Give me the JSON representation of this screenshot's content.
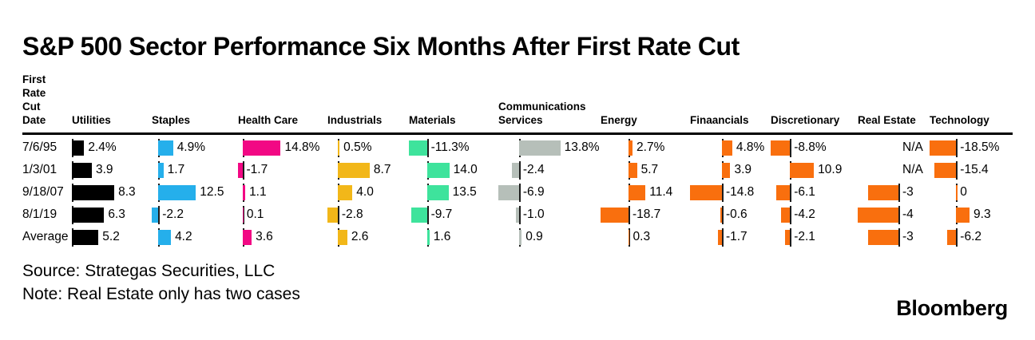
{
  "title": "S&P 500 Sector Performance Six Months After First Rate Cut",
  "source": "Source: Strategas Securities, LLC",
  "note": "Note: Real Estate only has two cases",
  "logo": "Bloomberg",
  "chart_data": {
    "type": "bar",
    "orientation": "horizontal",
    "layout_hint": "table of per-column mini bar charts, each column has its own zero axis and per-column normalized bar scale",
    "date_column_header_lines": [
      "First",
      "Rate",
      "Cut",
      "Date"
    ],
    "columns": [
      {
        "key": "utilities",
        "label": "Utilities",
        "color": "#000000"
      },
      {
        "key": "staples",
        "label": "Staples",
        "color": "#25AFEB"
      },
      {
        "key": "health-care",
        "label": "Health Care",
        "color": "#F20884"
      },
      {
        "key": "industrials",
        "label": "Industrials",
        "color": "#F2B719"
      },
      {
        "key": "materials",
        "label": "Materials",
        "color": "#3EE39C"
      },
      {
        "key": "communications-services",
        "label": "Communications Services",
        "color": "#B6BFB9"
      },
      {
        "key": "energy",
        "label": "Energy",
        "color": "#F96F0E"
      },
      {
        "key": "financials",
        "label": "Finaancials",
        "color": "#F96F0E"
      },
      {
        "key": "discretionary",
        "label": "Discretionary",
        "color": "#F96F0E"
      },
      {
        "key": "real-estate",
        "label": "Real Estate",
        "color": "#F96F0E"
      },
      {
        "key": "technology",
        "label": "Technology",
        "color": "#F96F0E"
      }
    ],
    "rows": [
      {
        "date": "7/6/95",
        "values": [
          2.4,
          4.9,
          14.8,
          0.5,
          -11.3,
          13.8,
          2.7,
          4.8,
          -8.8,
          null,
          -18.5
        ],
        "labels": [
          "2.4%",
          "4.9%",
          "14.8%",
          "0.5%",
          "-11.3%",
          "13.8%",
          "2.7%",
          "4.8%",
          "-8.8%",
          "N/A",
          "-18.5%"
        ]
      },
      {
        "date": "1/3/01",
        "values": [
          3.9,
          1.7,
          -1.7,
          8.7,
          14.0,
          -2.4,
          5.7,
          3.9,
          10.9,
          null,
          -15.4
        ],
        "labels": [
          "3.9",
          "1.7",
          "-1.7",
          "8.7",
          "14.0",
          "-2.4",
          "5.7",
          "3.9",
          "10.9",
          "N/A",
          "-15.4"
        ]
      },
      {
        "date": "9/18/07",
        "values": [
          8.3,
          12.5,
          1.1,
          4.0,
          13.5,
          -6.9,
          11.4,
          -14.8,
          -6.1,
          -3,
          0
        ],
        "labels": [
          "8.3",
          "12.5",
          "1.1",
          "4.0",
          "13.5",
          "-6.9",
          "11.4",
          "-14.8",
          "-6.1",
          "-3",
          "0"
        ]
      },
      {
        "date": "8/1/19",
        "values": [
          6.3,
          -2.2,
          0.1,
          -2.8,
          -9.7,
          -1.0,
          -18.7,
          -0.6,
          -4.2,
          -4,
          9.3
        ],
        "labels": [
          "6.3",
          "-2.2",
          "0.1",
          "-2.8",
          "-9.7",
          "-1.0",
          "-18.7",
          "-0.6",
          "-4.2",
          "-4",
          "9.3"
        ]
      },
      {
        "date": "Average",
        "values": [
          5.2,
          4.2,
          3.6,
          2.6,
          1.6,
          0.9,
          0.3,
          -1.7,
          -2.1,
          -3,
          -6.2
        ],
        "labels": [
          "5.2",
          "4.2",
          "3.6",
          "2.6",
          "1.6",
          "0.9",
          "0.3",
          "-1.7",
          "-2.1",
          "-3",
          "-6.2"
        ]
      }
    ]
  }
}
